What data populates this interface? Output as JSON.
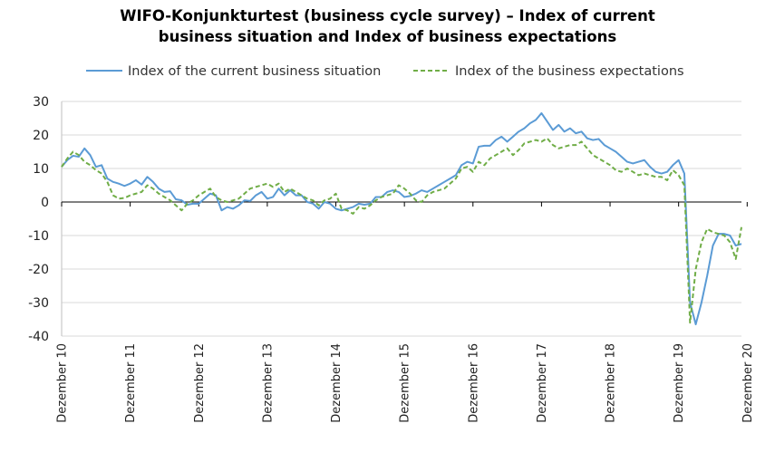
{
  "chart_data": {
    "type": "line",
    "title_line1": "WIFO-Konjunkturtest (business cycle survey) – Index of current",
    "title_line2": "business situation and Index of business expectations",
    "xlabel": "",
    "ylabel": "",
    "ylim": [
      -40,
      30
    ],
    "yticks": [
      30,
      20,
      10,
      0,
      -10,
      -20,
      -30,
      -40
    ],
    "xticks": [
      "Dezember 10",
      "Dezember 11",
      "Dezember 12",
      "Dezember 13",
      "Dezember 14",
      "Dezember 15",
      "Dezember 16",
      "Dezember 17",
      "Dezember 18",
      "Dezember 19",
      "Dezember 20"
    ],
    "x_start": "2010-12",
    "x_end": "2020-12",
    "grid": "horizontal",
    "legend_position": "top",
    "series": [
      {
        "name": "Index of the current business situation",
        "color": "#5b9bd5",
        "style": "solid",
        "values": [
          10.5,
          12.5,
          13.8,
          13.5,
          16.0,
          14.0,
          10.5,
          11.0,
          7.0,
          6.0,
          5.5,
          4.8,
          5.5,
          6.5,
          5.2,
          7.5,
          6.0,
          4.0,
          3.0,
          3.2,
          0.8,
          0.5,
          -0.8,
          -0.5,
          -0.5,
          1.0,
          2.5,
          2.0,
          -2.5,
          -1.5,
          -2.0,
          -1.0,
          0.5,
          0.3,
          2.0,
          3.0,
          1.0,
          1.5,
          4.0,
          2.0,
          3.5,
          2.0,
          2.0,
          0.0,
          -0.5,
          -2.0,
          0.0,
          -0.5,
          -2.0,
          -2.5,
          -2.0,
          -1.5,
          -0.5,
          -0.8,
          -0.5,
          1.5,
          1.5,
          3.0,
          3.5,
          3.0,
          1.5,
          1.8,
          2.5,
          3.5,
          3.0,
          4.0,
          5.0,
          6.0,
          7.0,
          8.0,
          11.0,
          12.0,
          11.5,
          16.5,
          16.8,
          16.8,
          18.5,
          19.5,
          18.0,
          19.5,
          21.0,
          22.0,
          23.5,
          24.5,
          26.5,
          24.0,
          21.5,
          23.0,
          21.0,
          22.0,
          20.5,
          21.0,
          19.0,
          18.5,
          18.8,
          17.0,
          16.0,
          15.0,
          13.5,
          12.0,
          11.5,
          12.0,
          12.5,
          10.5,
          9.0,
          8.5,
          9.0,
          11.0,
          12.5,
          8.5,
          -30.0,
          -36.5,
          -30.0,
          -22.0,
          -13.0,
          -9.5,
          -9.5,
          -10.0,
          -13.0,
          -12.5
        ]
      },
      {
        "name": "Index of the business expectations",
        "color": "#70ad47",
        "style": "dashed",
        "values": [
          10.5,
          13.0,
          15.0,
          14.0,
          12.0,
          11.0,
          9.5,
          8.5,
          6.0,
          2.0,
          1.0,
          1.2,
          2.0,
          2.5,
          3.0,
          5.0,
          4.0,
          2.5,
          1.5,
          0.5,
          -1.0,
          -2.5,
          -0.5,
          0.5,
          2.0,
          3.0,
          4.0,
          1.5,
          0.5,
          0.0,
          0.5,
          1.0,
          2.5,
          4.0,
          4.5,
          5.0,
          5.5,
          4.5,
          5.5,
          3.0,
          4.0,
          3.0,
          2.0,
          1.0,
          0.5,
          -1.0,
          0.5,
          1.0,
          2.5,
          -2.0,
          -2.5,
          -3.5,
          -1.5,
          -2.0,
          -1.0,
          0.5,
          1.5,
          2.0,
          2.5,
          5.0,
          4.0,
          2.5,
          0.5,
          0.0,
          2.0,
          3.0,
          3.5,
          4.0,
          5.5,
          7.0,
          10.0,
          10.5,
          9.0,
          12.0,
          11.0,
          13.0,
          14.0,
          15.0,
          16.0,
          14.0,
          15.5,
          17.5,
          18.0,
          18.5,
          18.0,
          19.0,
          17.0,
          16.0,
          16.5,
          17.0,
          17.0,
          18.0,
          16.0,
          14.0,
          13.0,
          12.0,
          11.0,
          9.5,
          9.0,
          10.0,
          9.0,
          8.0,
          8.5,
          8.0,
          7.5,
          7.5,
          6.5,
          9.5,
          8.0,
          5.0,
          -36.0,
          -20.0,
          -12.0,
          -8.0,
          -9.0,
          -9.5,
          -10.0,
          -12.0,
          -17.0,
          -7.5
        ]
      }
    ]
  }
}
